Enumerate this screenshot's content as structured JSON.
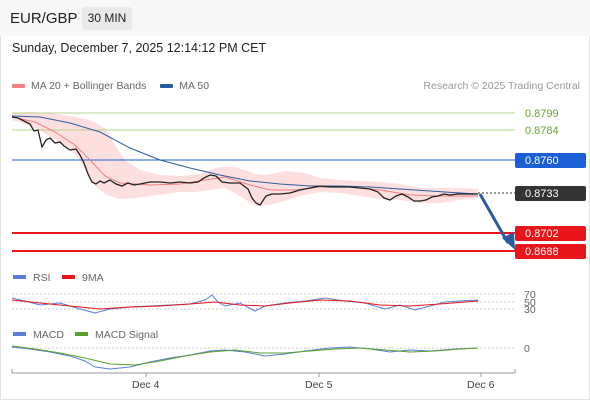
{
  "header": {
    "symbol": "EUR/GBP",
    "timeframe": "30 MIN"
  },
  "datetime": "Sunday, December 7, 2025 12:14:12 PM CET",
  "legend_main": {
    "ma20": "MA 20 + Bollinger Bands",
    "ma50": "MA 50"
  },
  "credit": "Research © 2025 Trading Central",
  "price_levels": [
    {
      "label": "0.8799",
      "kind": "resistance",
      "color": "#8fc04f"
    },
    {
      "label": "0.8784",
      "kind": "resistance",
      "color": "#8fc04f"
    },
    {
      "label": "0.8760",
      "kind": "pivot",
      "color": "#1a5fd6"
    },
    {
      "label": "0.8733",
      "kind": "last",
      "color": "#333333"
    },
    {
      "label": "0.8702",
      "kind": "support",
      "color": "#e8151b"
    },
    {
      "label": "0.8688",
      "kind": "support",
      "color": "#e8151b"
    }
  ],
  "legend_rsi": {
    "rsi": "RSI",
    "ma9": "9MA"
  },
  "rsi_levels": [
    "70",
    "50",
    "30"
  ],
  "legend_macd": {
    "macd": "MACD",
    "signal": "MACD Signal"
  },
  "macd_levels": [
    "0"
  ],
  "x_axis": [
    "Dec 4",
    "Dec 5",
    "Dec 6"
  ],
  "colors": {
    "ma20": "#f08080",
    "ma50": "#2a5d9f",
    "bollinger_fill": "#fddcdc",
    "rsi": "#5b7fd6",
    "ma9": "#e8151b",
    "macd": "#5b7fd6",
    "macd_signal": "#5aa02c",
    "arrow": "#2a5d9f"
  }
}
